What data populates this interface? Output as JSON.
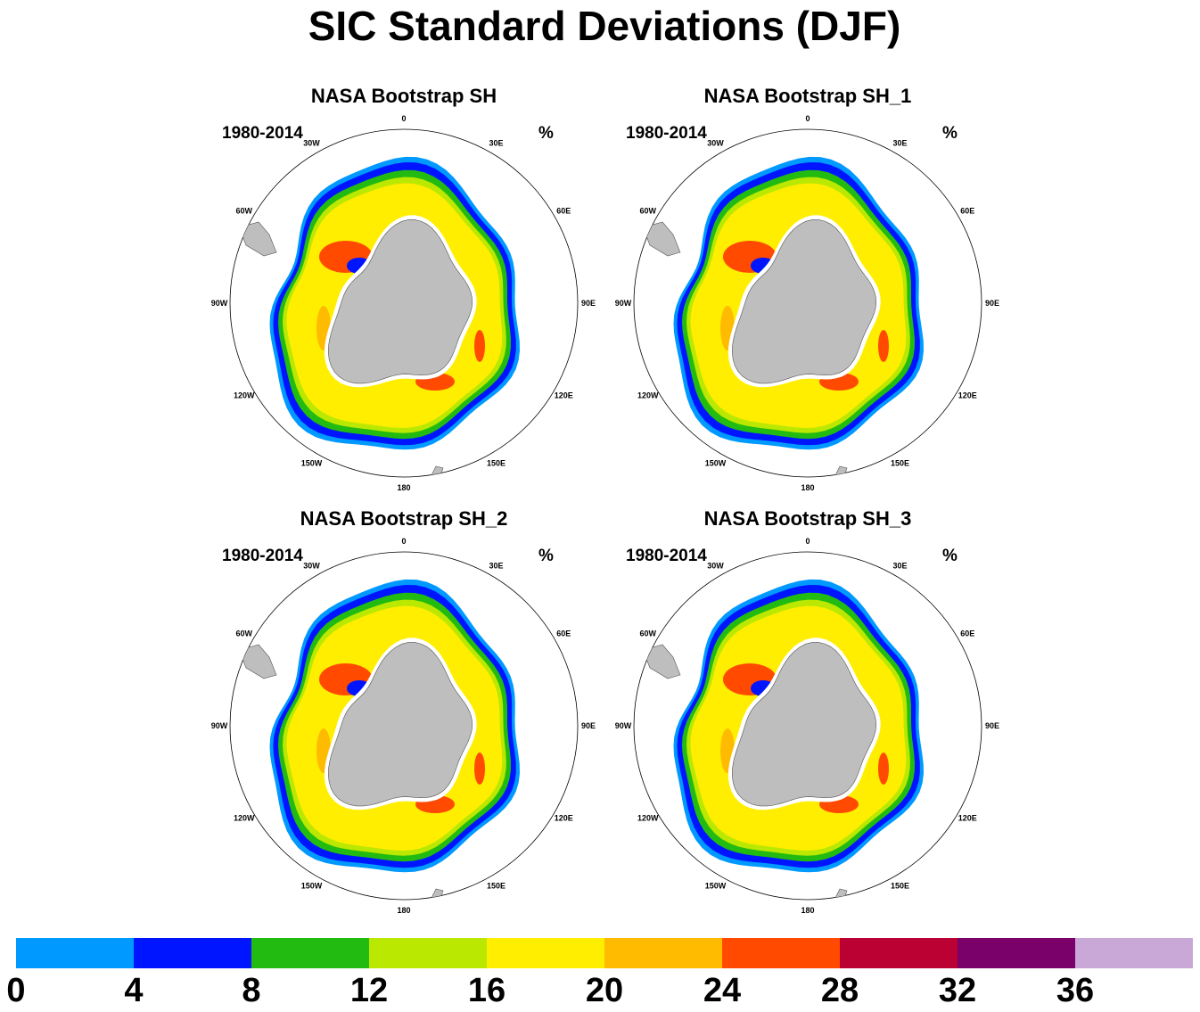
{
  "title": "SIC Standard Deviations (DJF)",
  "panels": [
    {
      "title": "NASA Bootstrap SH",
      "period": "1980-2014",
      "units": "%"
    },
    {
      "title": "NASA Bootstrap SH_1",
      "period": "1980-2014",
      "units": "%"
    },
    {
      "title": "NASA Bootstrap SH_2",
      "period": "1980-2014",
      "units": "%"
    },
    {
      "title": "NASA Bootstrap SH_3",
      "period": "1980-2014",
      "units": "%"
    }
  ],
  "longitude_labels": [
    "0",
    "30E",
    "60E",
    "90E",
    "120E",
    "150E",
    "180",
    "150W",
    "120W",
    "90W",
    "60W",
    "30W"
  ],
  "colorbar": {
    "colors": [
      "#0099ff",
      "#0015ff",
      "#22bb11",
      "#bbe800",
      "#ffee00",
      "#ffbb00",
      "#ff4a00",
      "#bb0033",
      "#7a006a",
      "#c9a8d8"
    ],
    "labels": [
      "0",
      "4",
      "8",
      "12",
      "16",
      "20",
      "24",
      "28",
      "32",
      "36"
    ]
  },
  "land_color": "#bebebe"
}
